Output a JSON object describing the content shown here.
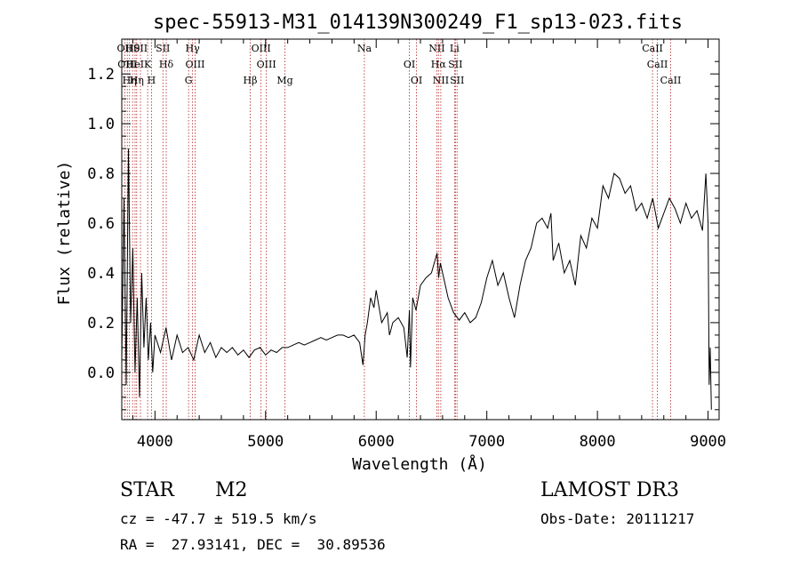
{
  "chart_data": {
    "type": "line",
    "title": "spec-55913-M31_014139N300249_F1_sp13-023.fits",
    "xlabel": "Wavelength (Å)",
    "ylabel": "Flux (relative)",
    "xlim": [
      3700,
      9100
    ],
    "ylim": [
      -0.19,
      1.34
    ],
    "xticks": [
      4000,
      5000,
      6000,
      7000,
      8000,
      9000
    ],
    "yticks": [
      0.0,
      0.2,
      0.4,
      0.6,
      0.8,
      1.0,
      1.2
    ],
    "ytick_labels": [
      "0.0",
      "0.2",
      "0.4",
      "0.6",
      "0.8",
      "1.0",
      "1.2"
    ],
    "series": [
      {
        "name": "spectrum",
        "x": [
          3700,
          3720,
          3740,
          3760,
          3780,
          3800,
          3820,
          3840,
          3860,
          3880,
          3900,
          3920,
          3940,
          3960,
          3980,
          4000,
          4050,
          4100,
          4150,
          4200,
          4250,
          4300,
          4350,
          4400,
          4450,
          4500,
          4550,
          4600,
          4650,
          4700,
          4750,
          4800,
          4850,
          4900,
          4950,
          5000,
          5050,
          5100,
          5150,
          5200,
          5250,
          5300,
          5350,
          5400,
          5450,
          5500,
          5550,
          5600,
          5650,
          5700,
          5750,
          5800,
          5850,
          5880,
          5900,
          5920,
          5950,
          5980,
          6000,
          6050,
          6100,
          6120,
          6150,
          6200,
          6250,
          6280,
          6300,
          6310,
          6330,
          6360,
          6400,
          6450,
          6500,
          6550,
          6565,
          6580,
          6600,
          6620,
          6650,
          6700,
          6750,
          6800,
          6850,
          6900,
          6950,
          7000,
          7050,
          7100,
          7150,
          7200,
          7250,
          7300,
          7350,
          7400,
          7450,
          7500,
          7550,
          7580,
          7600,
          7650,
          7700,
          7750,
          7800,
          7850,
          7900,
          7950,
          8000,
          8050,
          8100,
          8150,
          8200,
          8250,
          8300,
          8350,
          8400,
          8450,
          8500,
          8550,
          8600,
          8650,
          8700,
          8750,
          8800,
          8850,
          8900,
          8950,
          8980,
          9000,
          9010,
          9020,
          9030
        ],
        "y": [
          0.05,
          0.7,
          -0.05,
          0.9,
          0.2,
          0.5,
          0.0,
          0.3,
          -0.1,
          0.4,
          0.1,
          0.3,
          0.05,
          0.2,
          0.0,
          0.15,
          0.08,
          0.18,
          0.05,
          0.15,
          0.08,
          0.1,
          0.05,
          0.15,
          0.08,
          0.12,
          0.06,
          0.1,
          0.08,
          0.1,
          0.07,
          0.09,
          0.06,
          0.09,
          0.1,
          0.07,
          0.09,
          0.08,
          0.1,
          0.1,
          0.11,
          0.12,
          0.11,
          0.12,
          0.13,
          0.14,
          0.13,
          0.14,
          0.15,
          0.15,
          0.14,
          0.15,
          0.12,
          0.03,
          0.15,
          0.2,
          0.3,
          0.26,
          0.33,
          0.2,
          0.24,
          0.15,
          0.2,
          0.22,
          0.18,
          0.06,
          0.25,
          0.02,
          0.3,
          0.25,
          0.35,
          0.38,
          0.4,
          0.48,
          0.38,
          0.44,
          0.4,
          0.36,
          0.3,
          0.24,
          0.21,
          0.24,
          0.2,
          0.22,
          0.28,
          0.38,
          0.45,
          0.35,
          0.4,
          0.3,
          0.22,
          0.35,
          0.45,
          0.5,
          0.6,
          0.62,
          0.58,
          0.64,
          0.45,
          0.52,
          0.4,
          0.45,
          0.35,
          0.55,
          0.5,
          0.62,
          0.58,
          0.75,
          0.7,
          0.8,
          0.78,
          0.72,
          0.75,
          0.65,
          0.68,
          0.62,
          0.7,
          0.58,
          0.64,
          0.7,
          0.66,
          0.6,
          0.68,
          0.62,
          0.65,
          0.57,
          0.8,
          0.6,
          -0.05,
          0.1,
          -0.15
        ]
      }
    ],
    "lines_top": [
      {
        "w": 3727,
        "label": "OII"
      },
      {
        "w": 3750,
        "label": "OIII"
      },
      {
        "w": 3770,
        "label": "Hη"
      },
      {
        "w": 3798,
        "label": "Hθ"
      },
      {
        "w": 3820,
        "label": "HeI"
      },
      {
        "w": 3835,
        "label": "Hη"
      },
      {
        "w": 3869,
        "label": "SII"
      },
      {
        "w": 3934,
        "label": "K"
      },
      {
        "w": 3969,
        "label": "H"
      },
      {
        "w": 4072,
        "label": "SII"
      },
      {
        "w": 4102,
        "label": "Hδ"
      },
      {
        "w": 4304,
        "label": "G"
      },
      {
        "w": 4340,
        "label": "Hγ"
      },
      {
        "w": 4363,
        "label": "OIII"
      },
      {
        "w": 4861,
        "label": "Hβ"
      },
      {
        "w": 4959,
        "label": "OIII"
      },
      {
        "w": 5007,
        "label": "OIII"
      },
      {
        "w": 5175,
        "label": "Mg"
      },
      {
        "w": 5893,
        "label": "Na"
      },
      {
        "w": 6300,
        "label": "OI"
      },
      {
        "w": 6364,
        "label": "OI"
      },
      {
        "w": 6548,
        "label": "NII"
      },
      {
        "w": 6563,
        "label": "Hα"
      },
      {
        "w": 6584,
        "label": "NII"
      },
      {
        "w": 6708,
        "label": "Li"
      },
      {
        "w": 6716,
        "label": "SII"
      },
      {
        "w": 6731,
        "label": "SII"
      },
      {
        "w": 8498,
        "label": "CaII"
      },
      {
        "w": 8542,
        "label": "CaII"
      },
      {
        "w": 8662,
        "label": "CaII"
      }
    ]
  },
  "info": {
    "class": "STAR",
    "subclass": "M2",
    "survey": "LAMOST DR3",
    "cz": "cz = -47.7 ± 519.5 km/s",
    "obs_date": "Obs-Date: 20111217",
    "coords": "RA =  27.93141, DEC =  30.89536"
  },
  "colors": {
    "line_marker": "#b22222",
    "axes": "#000000",
    "spectrum": "#000000"
  }
}
